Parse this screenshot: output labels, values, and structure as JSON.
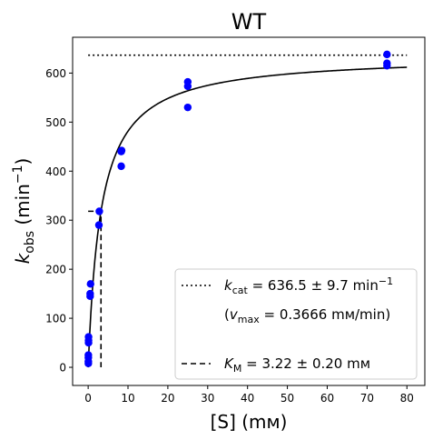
{
  "chart_data": {
    "type": "scatter",
    "title": "WT",
    "xlabel": "[S] (mм)",
    "ylabel": {
      "main": "k",
      "sub": "obs",
      "unit_pre": " (min",
      "unit_sup": "−1",
      "unit_post": ")"
    },
    "xlim": [
      -3.9,
      84.5
    ],
    "ylim": [
      -37,
      673
    ],
    "x_ticks": [
      0,
      10,
      20,
      30,
      40,
      50,
      60,
      70,
      80
    ],
    "x_tick_labels": [
      "0",
      "10",
      "20",
      "30",
      "40",
      "50",
      "60",
      "70",
      "80"
    ],
    "y_ticks": [
      0,
      100,
      200,
      300,
      400,
      500,
      600
    ],
    "y_tick_labels": [
      "0",
      "100",
      "200",
      "300",
      "400",
      "500",
      "600"
    ],
    "grid": false,
    "legend_position": "bottom-right",
    "kinetics": {
      "kcat": 636.5,
      "KM": 3.22
    },
    "series": [
      {
        "type": "scatter",
        "color": "#0000ff",
        "points": [
          [
            0.05,
            8
          ],
          [
            0.05,
            12
          ],
          [
            0.05,
            20
          ],
          [
            0.05,
            25
          ],
          [
            0.1,
            50
          ],
          [
            0.1,
            55
          ],
          [
            0.1,
            62
          ],
          [
            0.5,
            145
          ],
          [
            0.5,
            150
          ],
          [
            0.6,
            170
          ],
          [
            2.7,
            290
          ],
          [
            2.8,
            318
          ],
          [
            8.3,
            410
          ],
          [
            8.3,
            440
          ],
          [
            8.4,
            442
          ],
          [
            25,
            530
          ],
          [
            25,
            573
          ],
          [
            25,
            582
          ],
          [
            75,
            615
          ],
          [
            75,
            620
          ],
          [
            75,
            638
          ]
        ]
      },
      {
        "type": "line",
        "style": "solid",
        "color": "#000000",
        "model": "michaelis-menten",
        "x_range": [
          0,
          80
        ]
      },
      {
        "type": "line",
        "style": "dotted",
        "color": "#000000",
        "points": [
          [
            0,
            636.5
          ],
          [
            80,
            636.5
          ]
        ]
      },
      {
        "type": "line",
        "style": "dashed",
        "color": "#000000",
        "points": [
          [
            0,
            318.25
          ],
          [
            3.22,
            318.25
          ],
          [
            3.22,
            0
          ]
        ]
      }
    ],
    "legend": [
      {
        "style": "dotted",
        "parts": [
          {
            "t": "k",
            "italic": true
          },
          {
            "t": "cat",
            "sub": true
          },
          {
            "t": " = 636.5 ± 9.7 min"
          },
          {
            "t": "−1",
            "sup": true
          }
        ]
      },
      {
        "style": "none",
        "parts": [
          {
            "t": "("
          },
          {
            "t": "v",
            "italic": true
          },
          {
            "t": "max",
            "sub": true
          },
          {
            "t": " = 0.3666 mм/min)"
          }
        ]
      },
      {
        "style": "dashed",
        "parts": [
          {
            "t": "K",
            "italic": true
          },
          {
            "t": "M",
            "sub": true
          },
          {
            "t": " = 3.22 ± 0.20 mм"
          }
        ]
      }
    ]
  }
}
